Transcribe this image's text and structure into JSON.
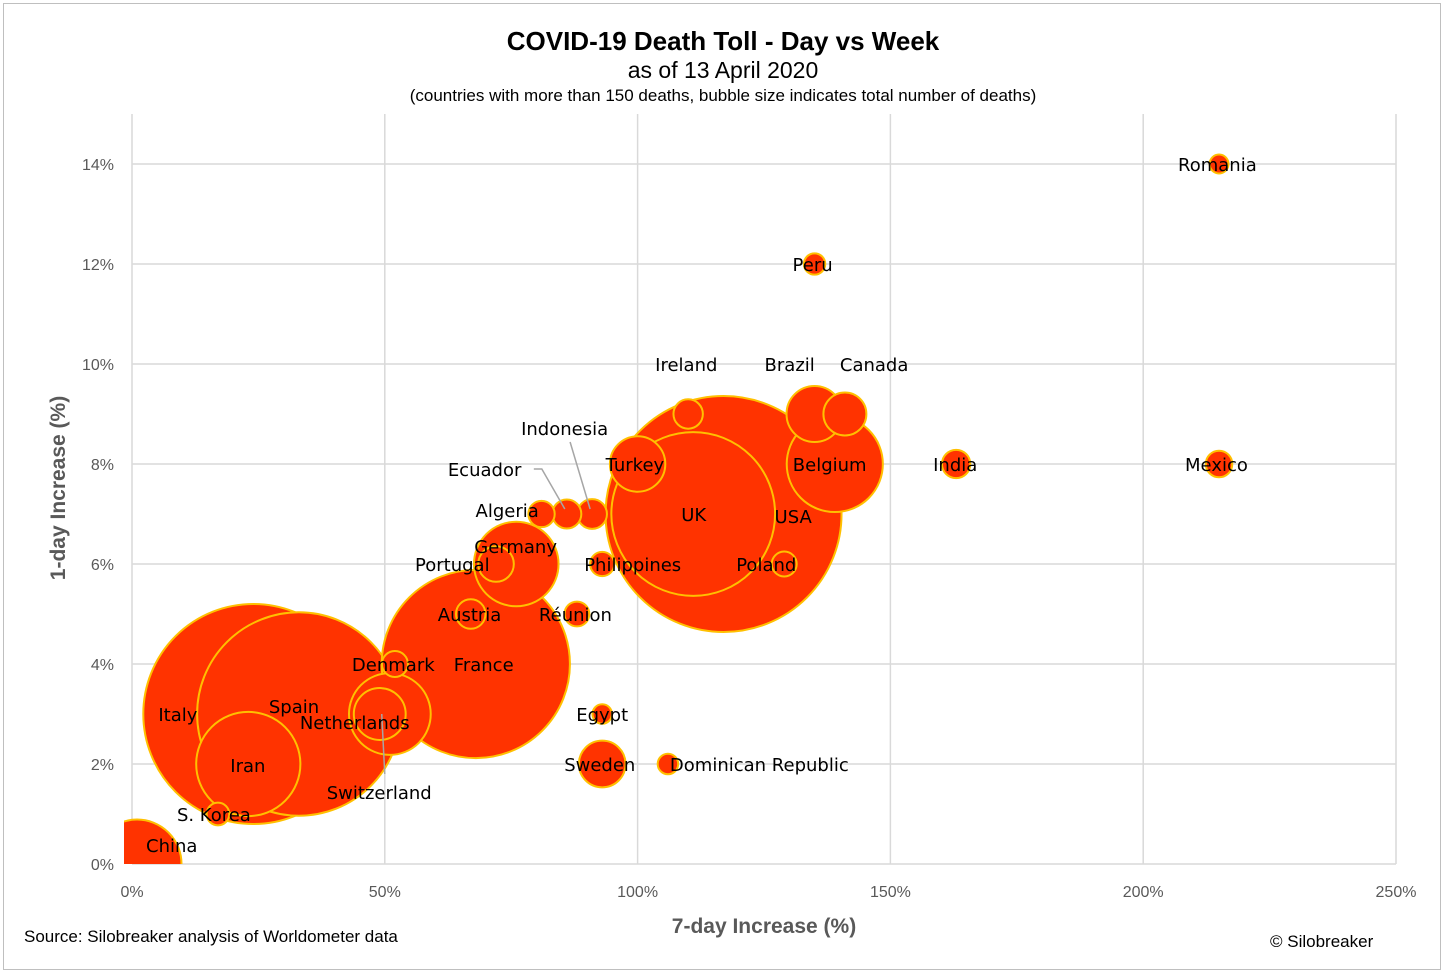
{
  "chart_data": {
    "type": "scatter",
    "title": "COVID-19 Death Toll - Day vs Week",
    "subtitle": "as of 13 April 2020",
    "note": "(countries with more than 150 deaths, bubble size indicates total number of deaths)",
    "xlabel": "7-day Increase (%)",
    "ylabel": "1-day Increase (%)",
    "xlim": [
      0,
      250
    ],
    "ylim": [
      0,
      15
    ],
    "xticks": [
      0,
      50,
      100,
      150,
      200,
      250
    ],
    "xtick_labels": [
      "0%",
      "50%",
      "100%",
      "150%",
      "200%",
      "250%"
    ],
    "yticks": [
      0,
      2,
      4,
      6,
      8,
      10,
      12,
      14
    ],
    "ytick_labels": [
      "0%",
      "2%",
      "4%",
      "6%",
      "8%",
      "10%",
      "12%",
      "14%"
    ],
    "grid": true,
    "bubble_fill": "#ff3300",
    "bubble_stroke": "#ffc000",
    "points": [
      {
        "name": "Italy",
        "x": 24,
        "y": 3,
        "deaths": 20465
      },
      {
        "name": "Spain",
        "x": 33,
        "y": 3,
        "deaths": 17489
      },
      {
        "name": "USA",
        "x": 117,
        "y": 7,
        "deaths": 23529
      },
      {
        "name": "France",
        "x": 68,
        "y": 4,
        "deaths": 14967
      },
      {
        "name": "UK",
        "x": 111,
        "y": 7,
        "deaths": 11329
      },
      {
        "name": "Iran",
        "x": 23,
        "y": 2,
        "deaths": 4585
      },
      {
        "name": "Belgium",
        "x": 139,
        "y": 8,
        "deaths": 3903
      },
      {
        "name": "Germany",
        "x": 76,
        "y": 6,
        "deaths": 3022
      },
      {
        "name": "Netherlands",
        "x": 51,
        "y": 3,
        "deaths": 2823
      },
      {
        "name": "China",
        "x": 1,
        "y": 0,
        "deaths": 3341
      },
      {
        "name": "Switzerland",
        "x": 49,
        "y": 3,
        "deaths": 1138
      },
      {
        "name": "Turkey",
        "x": 100,
        "y": 8,
        "deaths": 1296
      },
      {
        "name": "Brazil",
        "x": 135,
        "y": 9,
        "deaths": 1328
      },
      {
        "name": "Sweden",
        "x": 93,
        "y": 2,
        "deaths": 919
      },
      {
        "name": "Canada",
        "x": 141,
        "y": 9,
        "deaths": 780
      },
      {
        "name": "Portugal",
        "x": 72,
        "y": 6,
        "deaths": 535
      },
      {
        "name": "Austria",
        "x": 67,
        "y": 5,
        "deaths": 368
      },
      {
        "name": "Indonesia",
        "x": 91,
        "y": 7,
        "deaths": 373
      },
      {
        "name": "Ireland",
        "x": 110,
        "y": 9,
        "deaths": 365
      },
      {
        "name": "India",
        "x": 163,
        "y": 8,
        "deaths": 339
      },
      {
        "name": "Ecuador",
        "x": 86,
        "y": 7,
        "deaths": 355
      },
      {
        "name": "Algeria",
        "x": 81,
        "y": 7,
        "deaths": 293
      },
      {
        "name": "Philippines",
        "x": 93,
        "y": 6,
        "deaths": 247
      },
      {
        "name": "Réunion",
        "x": 88,
        "y": 5,
        "deaths": 260
      },
      {
        "name": "Denmark",
        "x": 52,
        "y": 4,
        "deaths": 285
      },
      {
        "name": "Egypt",
        "x": 93,
        "y": 3,
        "deaths": 159
      },
      {
        "name": "Mexico",
        "x": 215,
        "y": 8,
        "deaths": 296
      },
      {
        "name": "Romania",
        "x": 215,
        "y": 14,
        "deaths": 151
      },
      {
        "name": "Peru",
        "x": 135,
        "y": 12,
        "deaths": 193
      },
      {
        "name": "S. Korea",
        "x": 17,
        "y": 1,
        "deaths": 217
      },
      {
        "name": "Dominican Republic",
        "x": 106,
        "y": 2,
        "deaths": 177
      },
      {
        "name": "Poland",
        "x": 129,
        "y": 6,
        "deaths": 263
      }
    ]
  },
  "footer": {
    "source": "Source: Silobreaker analysis of Worldometer data",
    "copyright": "© Silobreaker"
  }
}
